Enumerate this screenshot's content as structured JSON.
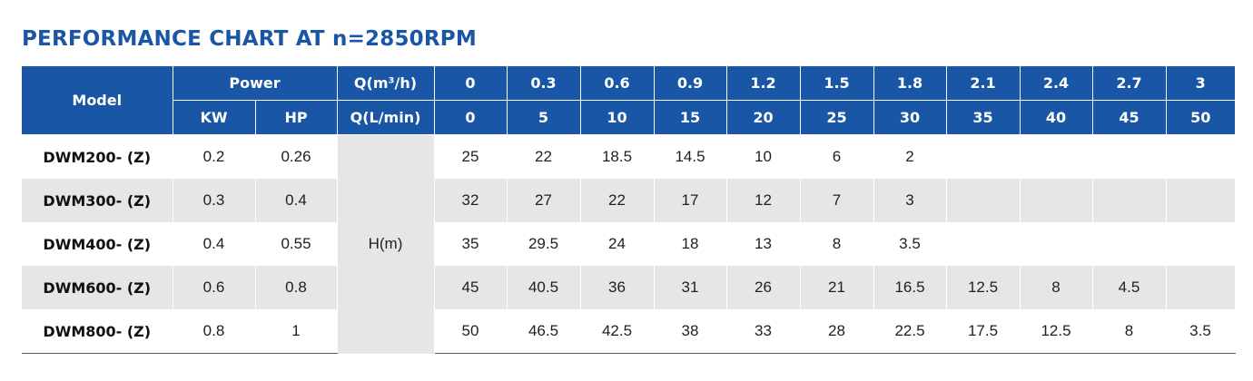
{
  "title": "PERFORMANCE CHART AT n=2850RPM",
  "header": {
    "model": "Model",
    "power": "Power",
    "kw": "KW",
    "hp": "HP",
    "q_m3h": "Q(m³/h)",
    "q_lmin": "Q(L/min)",
    "flow_m3h": [
      "0",
      "0.3",
      "0.6",
      "0.9",
      "1.2",
      "1.5",
      "1.8",
      "2.1",
      "2.4",
      "2.7",
      "3"
    ],
    "flow_lmin": [
      "0",
      "5",
      "10",
      "15",
      "20",
      "25",
      "30",
      "35",
      "40",
      "45",
      "50"
    ]
  },
  "head_label": "H(m)",
  "rows": [
    {
      "model": "DWM200- (Z)",
      "kw": "0.2",
      "hp": "0.26",
      "heads": [
        "25",
        "22",
        "18.5",
        "14.5",
        "10",
        "6",
        "2",
        "",
        "",
        "",
        ""
      ]
    },
    {
      "model": "DWM300- (Z)",
      "kw": "0.3",
      "hp": "0.4",
      "heads": [
        "32",
        "27",
        "22",
        "17",
        "12",
        "7",
        "3",
        "",
        "",
        "",
        ""
      ]
    },
    {
      "model": "DWM400- (Z)",
      "kw": "0.4",
      "hp": "0.55",
      "heads": [
        "35",
        "29.5",
        "24",
        "18",
        "13",
        "8",
        "3.5",
        "",
        "",
        "",
        ""
      ]
    },
    {
      "model": "DWM600- (Z)",
      "kw": "0.6",
      "hp": "0.8",
      "heads": [
        "45",
        "40.5",
        "36",
        "31",
        "26",
        "21",
        "16.5",
        "12.5",
        "8",
        "4.5",
        ""
      ]
    },
    {
      "model": "DWM800- (Z)",
      "kw": "0.8",
      "hp": "1",
      "heads": [
        "50",
        "46.5",
        "42.5",
        "38",
        "33",
        "28",
        "22.5",
        "17.5",
        "12.5",
        "8",
        "3.5"
      ]
    }
  ]
}
